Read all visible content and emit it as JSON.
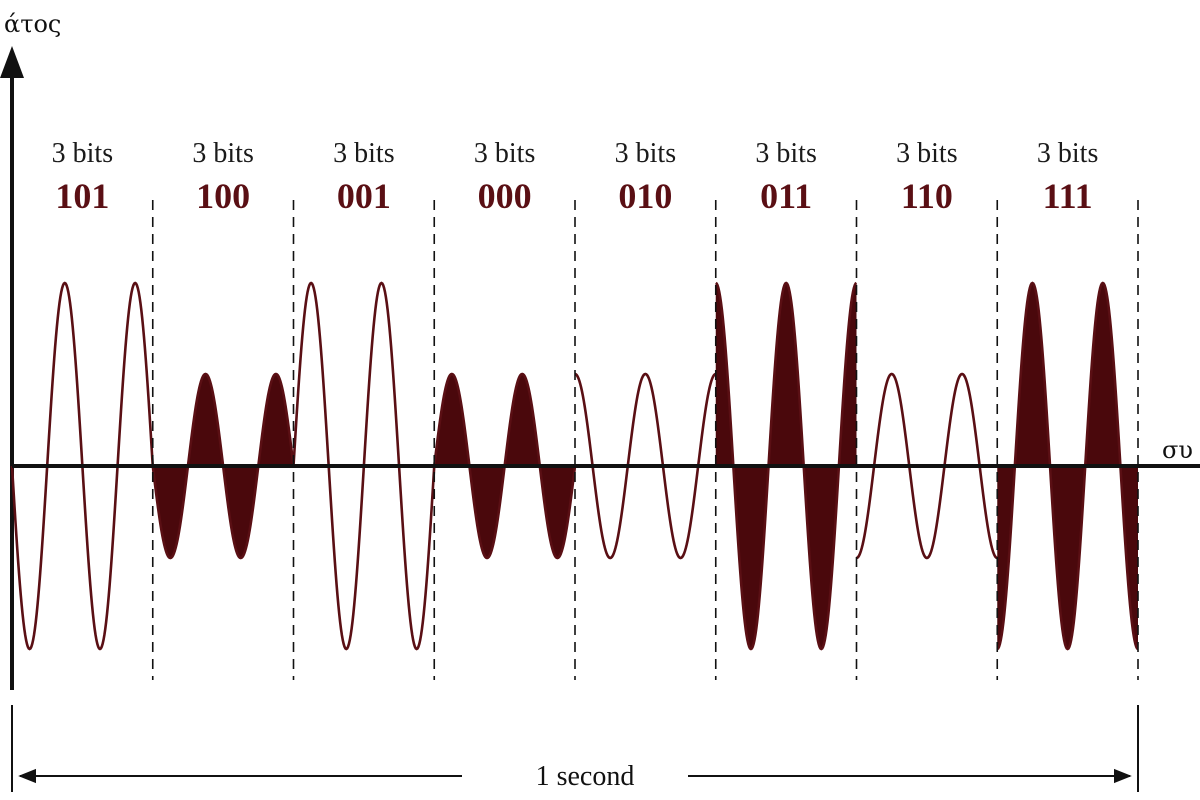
{
  "colors": {
    "wave": "#5a0f14",
    "fill": "#4a080c",
    "ink": "#111111"
  },
  "axes": {
    "y_label": "άτος",
    "x_label": "συ"
  },
  "duration_label": "1 second",
  "segments": [
    {
      "bits_label": "3 bits",
      "code": "101",
      "amplitude": "high",
      "phase": 180,
      "filled": false
    },
    {
      "bits_label": "3 bits",
      "code": "100",
      "amplitude": "low",
      "phase": 180,
      "filled": true
    },
    {
      "bits_label": "3 bits",
      "code": "001",
      "amplitude": "high",
      "phase": 0,
      "filled": false
    },
    {
      "bits_label": "3 bits",
      "code": "000",
      "amplitude": "low",
      "phase": 0,
      "filled": true
    },
    {
      "bits_label": "3 bits",
      "code": "010",
      "amplitude": "low",
      "phase": 90,
      "filled": false
    },
    {
      "bits_label": "3 bits",
      "code": "011",
      "amplitude": "high",
      "phase": 90,
      "filled": true
    },
    {
      "bits_label": "3 bits",
      "code": "110",
      "amplitude": "low",
      "phase": 270,
      "filled": false
    },
    {
      "bits_label": "3 bits",
      "code": "111",
      "amplitude": "high",
      "phase": 270,
      "filled": true
    }
  ]
}
